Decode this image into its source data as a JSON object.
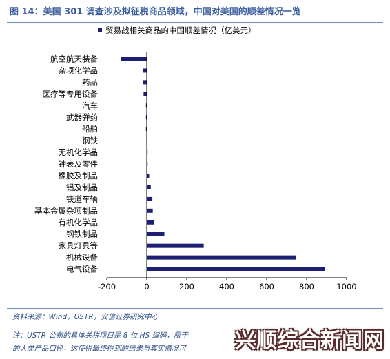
{
  "figure": {
    "title": "图 14：美国 301 调查涉及拟征税商品领域，中国对美国的顺差情况一览",
    "source": "资料来源：Wind，USTR，安信证券研究中心",
    "note_line1": "注：USTR 公布的具体关税项目是 8 位 HS 编码，限于",
    "note_line2": "的大类产品口径，这使得最终得到的结果与真实情况可",
    "watermark": "兴顺综合新闻网"
  },
  "colors": {
    "bar": "#1c1f73",
    "axis": "#000000",
    "title": "#3d5f9f",
    "rule": "#6e8ec0"
  },
  "chart_data": {
    "type": "bar",
    "orientation": "horizontal",
    "categories": [
      "航空航天装备",
      "杂项化学品",
      "药品",
      "医疗等专用设备",
      "汽车",
      "武器弹药",
      "船舶",
      "钢铁",
      "无机化学品",
      "钟表及零件",
      "橡胶及制品",
      "铝及制品",
      "铁道车辆",
      "基本金属杂项制品",
      "有机化学品",
      "钢铁制品",
      "家具灯具等",
      "机械设备",
      "电气设备"
    ],
    "series": [
      {
        "name": "贸易战相关商品的中国顺差情况（亿美元）",
        "values": [
          -130,
          -20,
          -18,
          -16,
          -2,
          -1,
          -1,
          0,
          1,
          1,
          12,
          20,
          28,
          30,
          36,
          88,
          285,
          748,
          893
        ]
      }
    ],
    "xlim": [
      -200,
      1000
    ],
    "xticks": [
      -200,
      0,
      200,
      400,
      600,
      800,
      1000
    ],
    "legend": "top-left"
  }
}
